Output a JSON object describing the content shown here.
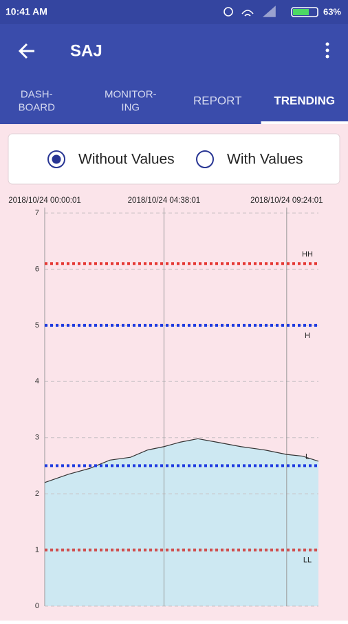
{
  "status_bar": {
    "time": "10:41 AM",
    "battery": "63%"
  },
  "app_bar": {
    "title": "SAJ"
  },
  "tabs": {
    "items": [
      [
        "DASH-",
        "BOARD"
      ],
      [
        "MONITOR-",
        "ING"
      ],
      [
        "REPORT"
      ],
      [
        "TRENDING"
      ]
    ],
    "selected": 3
  },
  "options": {
    "items": [
      "Without Values",
      "With Values"
    ],
    "selected": 0
  },
  "chart_data": {
    "type": "area",
    "x": [
      "2018/10/24 00:00:01",
      "2018/10/24 00:56:01",
      "2018/10/24 01:44:01",
      "2018/10/24 02:32:01",
      "2018/10/24 03:20:01",
      "2018/10/24 04:00:01",
      "2018/10/24 04:38:01",
      "2018/10/24 05:16:01",
      "2018/10/24 05:57:01",
      "2018/10/24 06:41:01",
      "2018/10/24 07:37:01",
      "2018/10/24 08:33:01",
      "2018/10/24 09:24:01",
      "2018/10/24 10:01:01",
      "2018/10/24 10:38:01"
    ],
    "values": [
      2.2,
      2.35,
      2.45,
      2.6,
      2.65,
      2.78,
      2.84,
      2.92,
      2.98,
      2.92,
      2.84,
      2.78,
      2.7,
      2.67,
      2.58
    ],
    "color": "#cde8f2",
    "line_color": "#333333",
    "xlim": [
      "2018/10/24 00:00:01",
      "2018/10/24 10:38:01"
    ],
    "xticks": [
      "2018/10/24 00:00:01",
      "2018/10/24 04:38:01",
      "2018/10/24 09:24:01"
    ],
    "ylim": [
      0,
      7
    ],
    "yticks": [
      0,
      1,
      2,
      3,
      4,
      5,
      6,
      7
    ],
    "grid": true,
    "thresholds": [
      {
        "label": "HH",
        "value": 6.1,
        "color": "#e53935"
      },
      {
        "label": "H",
        "value": 5,
        "color": "#1e3ae0"
      },
      {
        "label": "L",
        "value": 2.5,
        "color": "#1e3ae0"
      },
      {
        "label": "LL",
        "value": 1,
        "color": "#d05050"
      }
    ]
  }
}
